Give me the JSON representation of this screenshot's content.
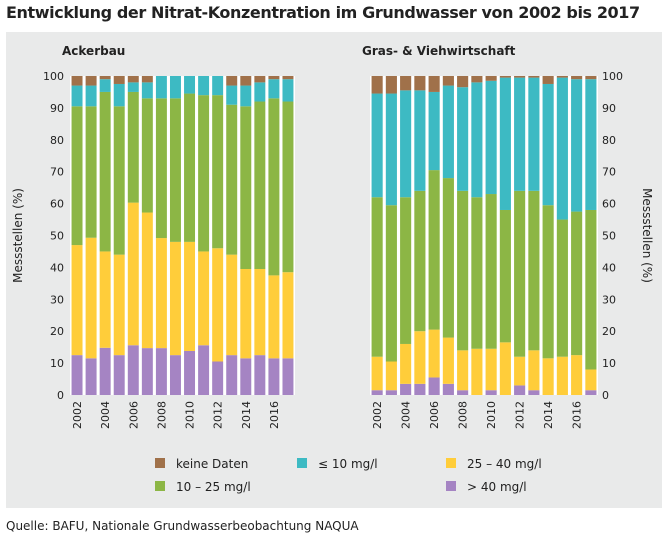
{
  "title": "Entwicklung der Nitrat-Konzentration im Grundwasser von 2002 bis 2017",
  "source": "Quelle: BAFU, Nationale Grundwasserbeobachtung NAQUA",
  "legend": [
    {
      "key": "keine_daten",
      "label": "keine Daten",
      "color": "#a0714a"
    },
    {
      "key": "le10",
      "label": "≤ 10 mg/l",
      "color": "#3dbac3"
    },
    {
      "key": "r25_40",
      "label": "25 – 40 mg/l",
      "color": "#ffcd3a"
    },
    {
      "key": "r10_25",
      "label": "10 – 25 mg/l",
      "color": "#8cb645"
    },
    {
      "key": "gt40",
      "label": "> 40 mg/l",
      "color": "#a584c3"
    }
  ],
  "chart_data": [
    {
      "type": "bar",
      "stacked": true,
      "title": "Ackerbau",
      "xlabel": "",
      "ylabel": "Messstellen (%)",
      "ylim": [
        0,
        100
      ],
      "yticks": [
        "0",
        "10",
        "20",
        "30",
        "40",
        "50",
        "60",
        "70",
        "80",
        "90",
        "100"
      ],
      "categories": [
        2002,
        2003,
        2004,
        2005,
        2006,
        2007,
        2008,
        2009,
        2010,
        2011,
        2012,
        2013,
        2014,
        2015,
        2016,
        2017
      ],
      "xtick_labels": [
        "2002",
        "2004",
        "2006",
        "2008",
        "2010",
        "2012",
        "2014",
        "2016"
      ],
      "series": [
        {
          "name": "> 40 mg/l",
          "values": [
            12.5,
            11.5,
            14.8,
            12.5,
            15.6,
            14.7,
            14.7,
            12.5,
            13.8,
            15.6,
            10.5,
            12.5,
            11.5,
            12.5,
            11.5,
            11.5
          ]
        },
        {
          "name": "25 – 40 mg/l",
          "values": [
            34.5,
            37.8,
            30.2,
            31.5,
            44.7,
            42.5,
            34.5,
            35.5,
            34.2,
            29.4,
            35.5,
            31.5,
            28.0,
            27.0,
            26.0,
            27.0
          ]
        },
        {
          "name": "10 – 25 mg/l",
          "values": [
            43.5,
            41.2,
            50.0,
            46.5,
            34.7,
            35.8,
            43.8,
            45.0,
            46.5,
            49.0,
            48.0,
            47.0,
            51.0,
            52.5,
            55.5,
            53.5
          ]
        },
        {
          "name": "≤ 10 mg/l",
          "values": [
            6.5,
            6.5,
            4.0,
            7.0,
            3.0,
            5.0,
            7.0,
            7.0,
            5.5,
            6.0,
            6.0,
            6.0,
            6.5,
            6.0,
            6.0,
            7.0
          ]
        },
        {
          "name": "keine Daten",
          "values": [
            3.0,
            3.0,
            1.0,
            2.5,
            2.0,
            2.0,
            0.0,
            0.0,
            0.0,
            0.0,
            0.0,
            3.0,
            3.0,
            2.0,
            1.0,
            1.0
          ]
        }
      ]
    },
    {
      "type": "bar",
      "stacked": true,
      "title": "Gras- & Viehwirtschaft",
      "xlabel": "",
      "ylabel": "Messstellen (%)",
      "ylim": [
        0,
        100
      ],
      "yticks": [
        "0",
        "10",
        "20",
        "30",
        "40",
        "50",
        "60",
        "70",
        "80",
        "90",
        "100"
      ],
      "categories": [
        2002,
        2003,
        2004,
        2005,
        2006,
        2007,
        2008,
        2009,
        2010,
        2011,
        2012,
        2013,
        2014,
        2015,
        2016,
        2017
      ],
      "xtick_labels": [
        "2002",
        "2004",
        "2006",
        "2008",
        "2010",
        "2012",
        "2014",
        "2016"
      ],
      "series": [
        {
          "name": "> 40 mg/l",
          "values": [
            1.5,
            1.5,
            3.5,
            3.5,
            5.5,
            3.5,
            1.5,
            0.0,
            1.5,
            0.0,
            3.0,
            1.5,
            0.0,
            0.0,
            0.0,
            1.5
          ]
        },
        {
          "name": "25 – 40 mg/l",
          "values": [
            10.5,
            9.0,
            12.5,
            16.5,
            15.0,
            14.5,
            12.5,
            14.5,
            13.0,
            16.5,
            9.0,
            12.5,
            11.5,
            12.0,
            12.5,
            6.5
          ]
        },
        {
          "name": "10 – 25 mg/l",
          "values": [
            50.0,
            49.0,
            46.0,
            44.0,
            50.0,
            50.0,
            50.0,
            47.5,
            48.5,
            41.5,
            52.0,
            50.0,
            48.0,
            43.0,
            45.0,
            50.0
          ]
        },
        {
          "name": "≤ 10 mg/l",
          "values": [
            32.5,
            35.0,
            33.5,
            31.5,
            24.5,
            29.0,
            32.5,
            36.0,
            35.5,
            41.5,
            35.5,
            35.5,
            38.0,
            44.5,
            41.5,
            41.0
          ]
        },
        {
          "name": "keine Daten",
          "values": [
            5.5,
            5.5,
            4.5,
            4.5,
            5.0,
            3.0,
            3.5,
            2.0,
            1.5,
            0.5,
            0.5,
            0.5,
            2.5,
            0.5,
            1.0,
            1.0
          ]
        }
      ]
    }
  ]
}
